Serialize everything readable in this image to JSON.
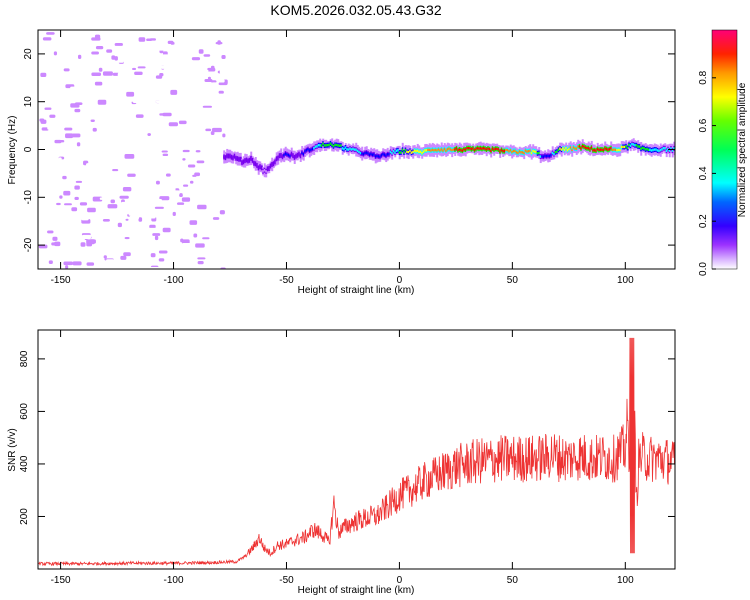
{
  "title": "KOM5.2026.032.05.43.G32",
  "chart_data": [
    {
      "type": "heatmap",
      "xlabel": "Height of straight line (km)",
      "ylabel": "Frequency (Hz)",
      "xlim": [
        -160,
        122
      ],
      "ylim": [
        -25,
        25
      ],
      "xticks": [
        -150,
        -100,
        -50,
        0,
        50,
        100
      ],
      "yticks": [
        -20,
        -10,
        0,
        10,
        20
      ],
      "colorbar": {
        "label": "Normalized spectral amplitude",
        "range": [
          0.0,
          1.0
        ],
        "ticks": [
          0.0,
          0.2,
          0.4,
          0.6,
          0.8
        ],
        "colormap": [
          "#ffffff",
          "#cc88ff",
          "#7700ee",
          "#0000ff",
          "#00ffff",
          "#00ff00",
          "#ffff00",
          "#ff8800",
          "#ff0000",
          "#ff0080"
        ]
      },
      "noise_region_x": [
        -160,
        -78
      ],
      "signal_track": {
        "x": [
          -78,
          -74,
          -70,
          -66,
          -63,
          -60,
          -57,
          -54,
          -50,
          -46,
          -42,
          -38,
          -34,
          -30,
          -26,
          -22,
          -18,
          -14,
          -10,
          -6,
          -2,
          2,
          6,
          10,
          14,
          20,
          26,
          32,
          40,
          50,
          60,
          63,
          66,
          70,
          74,
          80,
          86,
          92,
          96,
          100,
          103,
          106,
          110,
          116,
          122
        ],
        "freq": [
          -1.5,
          -1.5,
          -2.5,
          -2.0,
          -3.5,
          -4.5,
          -3.5,
          -1.5,
          -1.0,
          -1.5,
          -0.5,
          0.5,
          1.0,
          1.0,
          0.5,
          0.0,
          -0.5,
          -1.0,
          -1.5,
          -1.0,
          -0.5,
          -0.3,
          -0.5,
          -0.5,
          0.0,
          0.0,
          0.0,
          0.0,
          0.0,
          -0.5,
          -0.5,
          -1.5,
          -1.5,
          0.0,
          0.0,
          0.5,
          0.0,
          0.0,
          0.0,
          0.5,
          1.0,
          0.3,
          0.0,
          0.0,
          0.0
        ],
        "amplitude": [
          0.25,
          0.25,
          0.2,
          0.25,
          0.2,
          0.15,
          0.2,
          0.25,
          0.3,
          0.25,
          0.3,
          0.4,
          0.55,
          0.55,
          0.5,
          0.45,
          0.4,
          0.35,
          0.3,
          0.35,
          0.45,
          0.6,
          0.65,
          0.7,
          0.75,
          0.8,
          0.85,
          0.9,
          0.9,
          0.8,
          0.7,
          0.35,
          0.3,
          0.6,
          0.7,
          0.85,
          0.9,
          0.9,
          0.7,
          0.6,
          0.4,
          0.6,
          0.5,
          0.45,
          0.4
        ]
      }
    },
    {
      "type": "line",
      "xlabel": "Height of straight line (km)",
      "ylabel": "SNR (v/v)",
      "xlim": [
        -160,
        122
      ],
      "ylim": [
        0,
        910
      ],
      "xticks": [
        -150,
        -100,
        -50,
        0,
        50,
        100
      ],
      "yticks": [
        200,
        400,
        600,
        800
      ],
      "color": "#ee3333",
      "series": [
        {
          "x": [
            -160,
            -140,
            -120,
            -100,
            -85,
            -72,
            -68,
            -64,
            -62,
            -60,
            -57,
            -54,
            -50,
            -46,
            -42,
            -38,
            -34,
            -31,
            -29,
            -27,
            -24,
            -20,
            -16,
            -12,
            -10,
            -5,
            0,
            5,
            10,
            15,
            20,
            25,
            30,
            35,
            40,
            45,
            50,
            55,
            60,
            65,
            67,
            70,
            75,
            80,
            85,
            90,
            95,
            100,
            101,
            102,
            103,
            104,
            105,
            106,
            108,
            110,
            115,
            120,
            122
          ],
          "y": [
            20,
            20,
            22,
            22,
            24,
            28,
            50,
            90,
            120,
            80,
            60,
            90,
            95,
            110,
            120,
            150,
            130,
            100,
            250,
            140,
            160,
            180,
            190,
            200,
            200,
            240,
            280,
            300,
            330,
            350,
            370,
            390,
            400,
            410,
            415,
            420,
            420,
            420,
            420,
            425,
            440,
            425,
            420,
            430,
            420,
            425,
            420,
            460,
            560,
            300,
            100,
            600,
            250,
            420,
            430,
            420,
            420,
            410,
            400
          ]
        }
      ]
    }
  ]
}
